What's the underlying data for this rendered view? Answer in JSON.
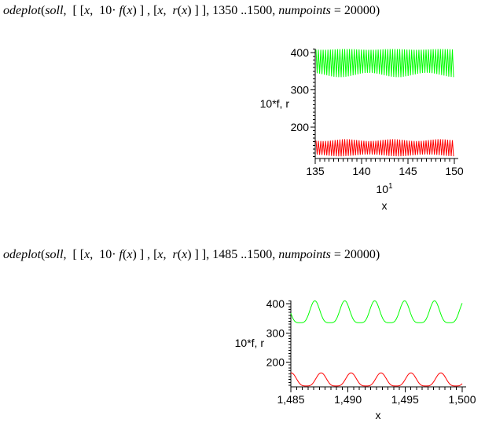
{
  "commands": [
    {
      "full_text": "odeplot(soll,  [ [x,  10· f(x) ] , [x,  r(x) ] ], 1350 ..1500, numpoints = 20000)",
      "segments": [
        {
          "text": "odeplot",
          "style": "italic"
        },
        {
          "text": "(",
          "style": "regular"
        },
        {
          "text": "soll",
          "style": "italic"
        },
        {
          "text": ",  [ [",
          "style": "regular"
        },
        {
          "text": "x",
          "style": "italic"
        },
        {
          "text": ",  10·",
          "style": "regular"
        },
        {
          "text": " f",
          "style": "italic"
        },
        {
          "text": "(",
          "style": "regular"
        },
        {
          "text": "x",
          "style": "italic"
        },
        {
          "text": ") ] , [",
          "style": "regular"
        },
        {
          "text": "x",
          "style": "italic"
        },
        {
          "text": ",  ",
          "style": "regular"
        },
        {
          "text": "r",
          "style": "italic"
        },
        {
          "text": "(",
          "style": "regular"
        },
        {
          "text": "x",
          "style": "italic"
        },
        {
          "text": ") ] ], 1350 ..1500, ",
          "style": "regular"
        },
        {
          "text": "numpoints",
          "style": "italic"
        },
        {
          "text": " = 20000)",
          "style": "regular"
        }
      ]
    },
    {
      "full_text": "odeplot(soll,  [ [x,  10· f(x) ] , [x,  r(x) ] ], 1485 ..1500, numpoints = 20000)",
      "segments": [
        {
          "text": "odeplot",
          "style": "italic"
        },
        {
          "text": "(",
          "style": "regular"
        },
        {
          "text": "soll",
          "style": "italic"
        },
        {
          "text": ",  [ [",
          "style": "regular"
        },
        {
          "text": "x",
          "style": "italic"
        },
        {
          "text": ",  10·",
          "style": "regular"
        },
        {
          "text": " f",
          "style": "italic"
        },
        {
          "text": "(",
          "style": "regular"
        },
        {
          "text": "x",
          "style": "italic"
        },
        {
          "text": ") ] , [",
          "style": "regular"
        },
        {
          "text": "x",
          "style": "italic"
        },
        {
          "text": ",  ",
          "style": "regular"
        },
        {
          "text": "r",
          "style": "italic"
        },
        {
          "text": "(",
          "style": "regular"
        },
        {
          "text": "x",
          "style": "italic"
        },
        {
          "text": ") ] ], 1485 ..1500, ",
          "style": "regular"
        },
        {
          "text": "numpoints",
          "style": "italic"
        },
        {
          "text": " = 20000)",
          "style": "regular"
        }
      ]
    }
  ],
  "chart_data": [
    {
      "type": "line",
      "title": "",
      "xlabel": "x",
      "ylabel": "10*f, r",
      "x_axis_multiplier": {
        "base": "10",
        "exponent": "1"
      },
      "xlim": [
        135,
        150
      ],
      "ylim": [
        115,
        411
      ],
      "x_ticks": [
        135,
        140,
        145,
        150
      ],
      "x_tick_labels": [
        "135",
        "140",
        "145",
        "150"
      ],
      "x_minor_step": 0.5,
      "y_ticks": [
        200,
        300,
        400
      ],
      "y_tick_labels": [
        "200",
        "300",
        "400"
      ],
      "y_minor_step": 10,
      "grid": false,
      "legend": false,
      "series": [
        {
          "name": "10*f(x)",
          "color": "#00ff00",
          "waveform": "dense_band",
          "min": 334,
          "max": 410,
          "period": 0.26,
          "description": "~58 oscillation cycles over x=1350..1500 rendered as a dense band between 334 and 410"
        },
        {
          "name": "r(x)",
          "color": "#ff0000",
          "waveform": "dense_band",
          "min": 121,
          "max": 167,
          "period": 0.26,
          "description": "~58 oscillation cycles over x=1350..1500 rendered as a dense band between 121 and 167"
        }
      ]
    },
    {
      "type": "line",
      "title": "",
      "xlabel": "x",
      "ylabel": "10*f, r",
      "xlim": [
        1485,
        1500
      ],
      "ylim": [
        115,
        411
      ],
      "x_ticks": [
        1485,
        1490,
        1495,
        1500
      ],
      "x_tick_labels": [
        "1,485",
        "1,490",
        "1,495",
        "1,500"
      ],
      "x_minor_step": 0.5,
      "y_ticks": [
        200,
        300,
        400
      ],
      "y_tick_labels": [
        "200",
        "300",
        "400"
      ],
      "y_minor_step": 10,
      "grid": false,
      "legend": false,
      "series": [
        {
          "name": "10*f(x)",
          "color": "#00ff00",
          "waveform": "shaped_sine",
          "min": 335,
          "max": 410,
          "period": 2.62,
          "peak_x": 1487.1,
          "shape_power": 2.0,
          "description": "periodic oscillation, peaks ~410 at x=1487.1,1489.7,1492.3,1494.9,1497.5,1500.1; flat troughs ~335"
        },
        {
          "name": "r(x)",
          "color": "#ff0000",
          "waveform": "shaped_sine",
          "min": 118,
          "max": 163,
          "period": 2.62,
          "peak_x": 1487.65,
          "shape_power": 1.8,
          "description": "periodic oscillation, peaks ~163 at x=1487.65,1490.3,1492.9,1495.5,1498.1; flat troughs ~118"
        }
      ]
    }
  ],
  "colors": {
    "background": "#ffffff",
    "axis": "#000000",
    "text": "#000000",
    "green_curve": "#00ff00",
    "red_curve": "#ff0000"
  }
}
